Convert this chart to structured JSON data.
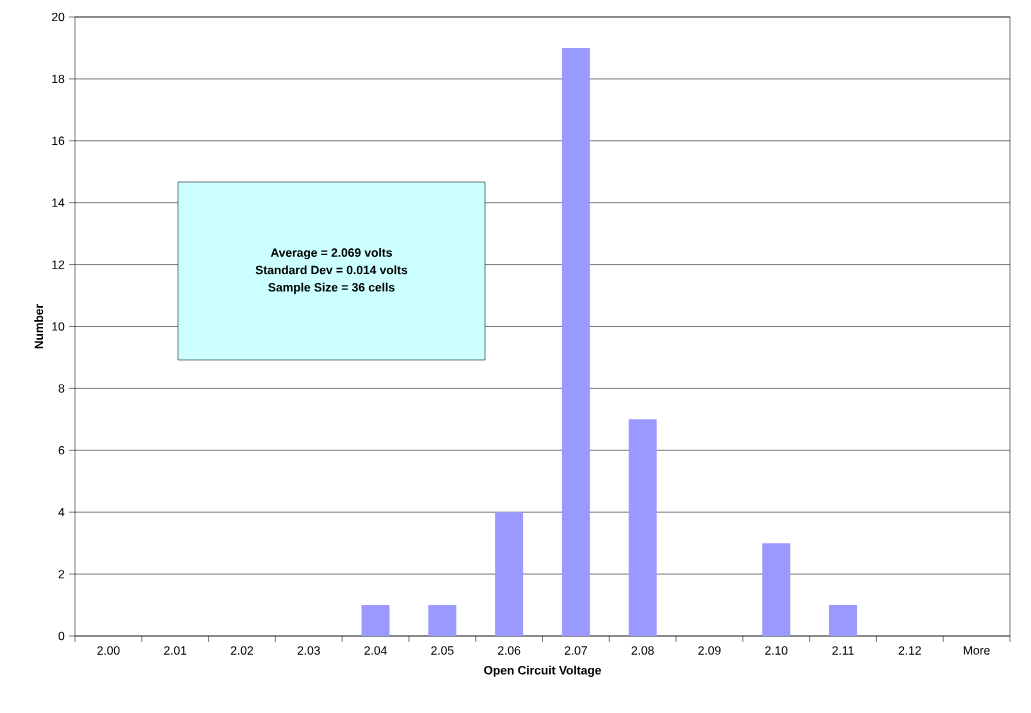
{
  "chart_data": {
    "type": "bar",
    "xlabel": "Open Circuit Voltage",
    "ylabel": "Number",
    "categories": [
      "2.00",
      "2.01",
      "2.02",
      "2.03",
      "2.04",
      "2.05",
      "2.06",
      "2.07",
      "2.08",
      "2.09",
      "2.10",
      "2.11",
      "2.12",
      "More"
    ],
    "values": [
      0,
      0,
      0,
      0,
      1,
      1,
      4,
      19,
      7,
      0,
      3,
      1,
      0,
      0
    ],
    "color": "#9999ff",
    "ylim": [
      0,
      20
    ],
    "yticks": [
      0,
      2,
      4,
      6,
      8,
      10,
      12,
      14,
      16,
      18,
      20
    ],
    "grid": "y",
    "annotations": [
      "Average = 2.069 volts",
      "Standard Dev = 0.014 volts",
      "Sample Size = 36 cells"
    ]
  }
}
